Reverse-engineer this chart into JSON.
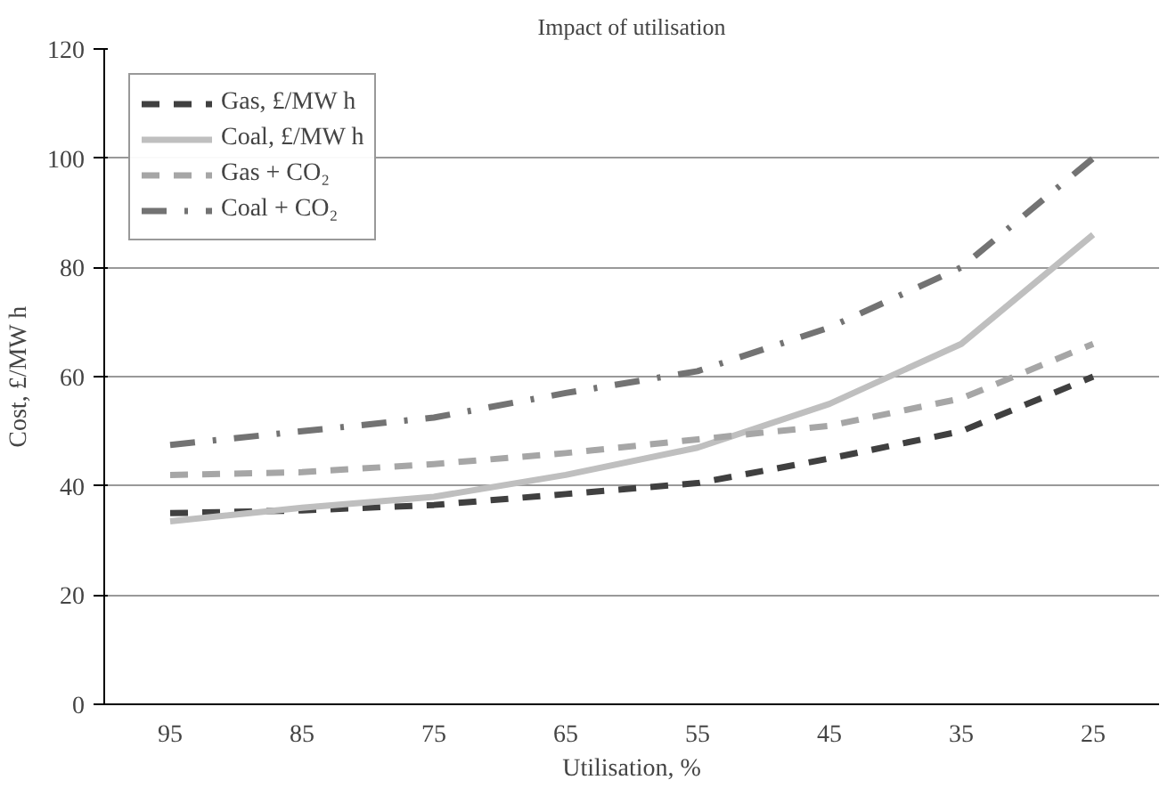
{
  "chart_data": {
    "type": "line",
    "title": "Impact of utilisation",
    "xlabel": "Utilisation, %",
    "ylabel": "Cost, £/MW h",
    "categories": [
      "95",
      "85",
      "75",
      "65",
      "55",
      "45",
      "35",
      "25"
    ],
    "series": [
      {
        "name": "Gas, £/MW h",
        "color": "#404040",
        "line_style": "dashed",
        "values": [
          35,
          35.5,
          36.5,
          38.5,
          40.5,
          45,
          50,
          60
        ]
      },
      {
        "name": "Coal, £/MW h",
        "color": "#bfbfbf",
        "line_style": "solid",
        "values": [
          33.5,
          36,
          38,
          42,
          47,
          55,
          66,
          86
        ]
      },
      {
        "name": "Gas + CO₂",
        "color": "#a6a6a6",
        "line_style": "dashed",
        "values": [
          42,
          42.5,
          44,
          46,
          48.5,
          51,
          56,
          66
        ]
      },
      {
        "name": "Coal + CO₂",
        "color": "#737373",
        "line_style": "dashdot",
        "values": [
          47.5,
          50,
          52.5,
          57,
          61,
          69,
          80,
          100
        ]
      }
    ],
    "ylim": [
      0,
      120
    ],
    "yticks": [
      0,
      20,
      40,
      60,
      80,
      100,
      120
    ],
    "grid": "y",
    "legend": "top left"
  }
}
